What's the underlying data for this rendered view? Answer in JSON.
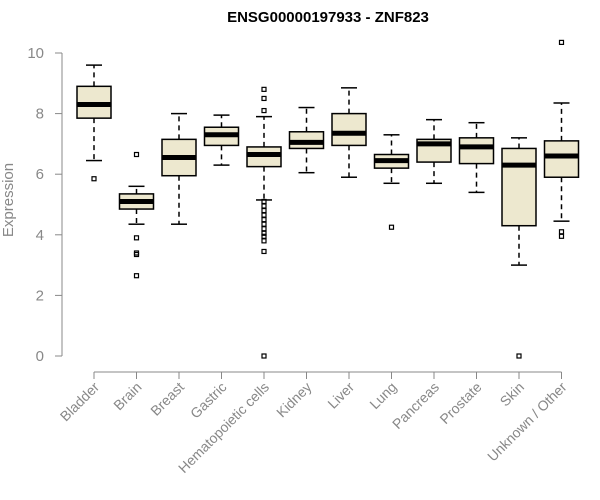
{
  "chart_data": {
    "type": "boxplot",
    "title": "ENSG00000197933 - ZNF823",
    "ylabel": "Expression",
    "xlabel": "",
    "ylim": [
      0,
      10.5
    ],
    "yticks": [
      0,
      2,
      4,
      6,
      8,
      10
    ],
    "colors": {
      "box_fill": "#ede8cf",
      "box_stroke": "#000000",
      "axis": "#888888"
    },
    "categories": [
      "Bladder",
      "Brain",
      "Breast",
      "Gastric",
      "Hematopoietic cells",
      "Kidney",
      "Liver",
      "Lung",
      "Pancreas",
      "Prostate",
      "Skin",
      "Unknown / Other"
    ],
    "boxes": [
      {
        "q1": 7.85,
        "median": 8.3,
        "q3": 8.9,
        "low": 6.45,
        "high": 9.6,
        "outliers": [
          5.85
        ]
      },
      {
        "q1": 4.85,
        "median": 5.1,
        "q3": 5.35,
        "low": 4.35,
        "high": 5.6,
        "outliers": [
          6.65,
          3.9,
          3.4,
          3.35,
          2.65
        ]
      },
      {
        "q1": 5.95,
        "median": 6.55,
        "q3": 7.15,
        "low": 4.35,
        "high": 8.0,
        "outliers": []
      },
      {
        "q1": 6.95,
        "median": 7.3,
        "q3": 7.55,
        "low": 6.3,
        "high": 7.95,
        "outliers": []
      },
      {
        "q1": 6.25,
        "median": 6.65,
        "q3": 6.9,
        "low": 5.15,
        "high": 7.9,
        "outliers": [
          8.8,
          8.5,
          8.1,
          5.1,
          4.95,
          4.8,
          4.65,
          4.5,
          4.35,
          4.2,
          4.05,
          3.95,
          3.8,
          3.45,
          0.0
        ]
      },
      {
        "q1": 6.85,
        "median": 7.05,
        "q3": 7.4,
        "low": 6.05,
        "high": 8.2,
        "outliers": []
      },
      {
        "q1": 6.95,
        "median": 7.35,
        "q3": 8.0,
        "low": 5.9,
        "high": 8.85,
        "outliers": []
      },
      {
        "q1": 6.2,
        "median": 6.45,
        "q3": 6.65,
        "low": 5.7,
        "high": 7.3,
        "outliers": [
          4.25
        ]
      },
      {
        "q1": 6.4,
        "median": 7.0,
        "q3": 7.15,
        "low": 5.7,
        "high": 7.8,
        "outliers": []
      },
      {
        "q1": 6.35,
        "median": 6.9,
        "q3": 7.2,
        "low": 5.4,
        "high": 7.7,
        "outliers": []
      },
      {
        "q1": 4.3,
        "median": 6.3,
        "q3": 6.85,
        "low": 3.0,
        "high": 7.2,
        "outliers": [
          0.0
        ]
      },
      {
        "q1": 5.9,
        "median": 6.6,
        "q3": 7.1,
        "low": 4.45,
        "high": 8.35,
        "outliers": [
          10.35,
          4.1,
          3.95
        ]
      }
    ]
  }
}
